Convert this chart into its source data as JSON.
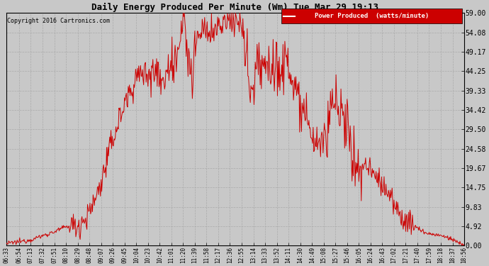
{
  "title": "Daily Energy Produced Per Minute (Wm) Tue Mar 29 19:13",
  "copyright": "Copyright 2016 Cartronics.com",
  "legend_label": "Power Produced  (watts/minute)",
  "legend_bg": "#cc0000",
  "legend_fg": "#ffffff",
  "line_color": "#cc0000",
  "bg_color": "#c8c8c8",
  "plot_bg": "#c8c8c8",
  "grid_color": "#aaaaaa",
  "yticks": [
    0.0,
    4.92,
    9.83,
    14.75,
    19.67,
    24.58,
    29.5,
    34.42,
    39.33,
    44.25,
    49.17,
    54.08,
    59.0
  ],
  "ymin": 0.0,
  "ymax": 59.0,
  "xtick_labels": [
    "06:33",
    "06:54",
    "07:13",
    "07:32",
    "07:51",
    "08:10",
    "08:29",
    "08:48",
    "09:07",
    "09:26",
    "09:45",
    "10:04",
    "10:23",
    "10:42",
    "11:01",
    "11:20",
    "11:39",
    "11:58",
    "12:17",
    "12:36",
    "12:55",
    "13:14",
    "13:33",
    "13:52",
    "14:11",
    "14:30",
    "14:49",
    "15:08",
    "15:27",
    "15:46",
    "16:05",
    "16:24",
    "16:43",
    "17:02",
    "17:21",
    "17:40",
    "17:59",
    "18:18",
    "18:37",
    "18:56"
  ],
  "figsize": [
    6.9,
    3.75
  ],
  "dpi": 100
}
